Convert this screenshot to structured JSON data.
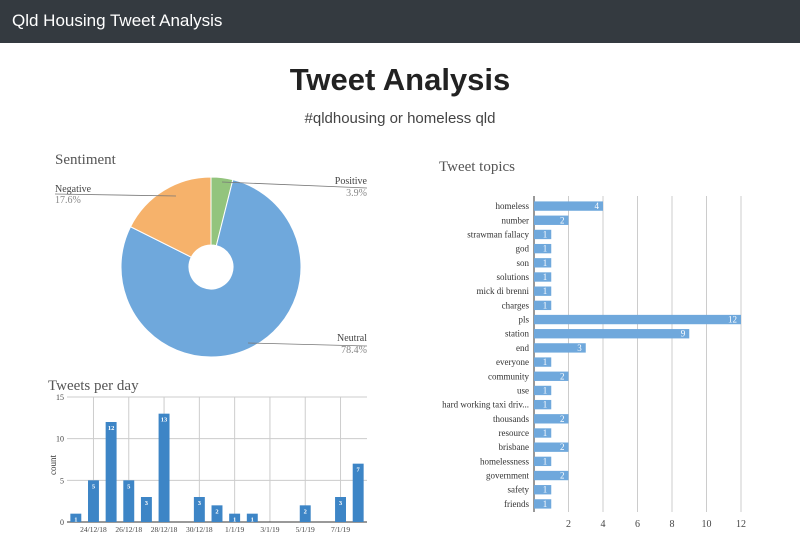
{
  "app": {
    "brand": "Qld Housing Tweet Analysis",
    "title": "Tweet Analysis",
    "subtitle": "#qldhousing or homeless qld"
  },
  "colors": {
    "navbar": "#343a40",
    "neutral": "#6fa8dc",
    "negative": "#f6b26b",
    "positive": "#93c47d",
    "bar_day": "#3d85c6",
    "bar_topic": "#6fa8dc"
  },
  "chart_data": [
    {
      "type": "pie",
      "title": "Sentiment",
      "donut": true,
      "slices": [
        {
          "label": "Positive",
          "value": 3.9,
          "display": "3.9%"
        },
        {
          "label": "Neutral",
          "value": 78.4,
          "display": "78.4%"
        },
        {
          "label": "Negative",
          "value": 17.6,
          "display": "17.6%"
        }
      ]
    },
    {
      "type": "bar",
      "title": "Tweets per day",
      "ylabel": "count",
      "xlabel": "",
      "ylim": [
        0,
        15
      ],
      "yticks": [
        0,
        5,
        10,
        15
      ],
      "xtick_labels": [
        "24/12/18",
        "26/12/18",
        "28/12/18",
        "30/12/18",
        "1/1/19",
        "3/1/19",
        "5/1/19",
        "7/1/19"
      ],
      "values": [
        1,
        5,
        12,
        5,
        3,
        13,
        0,
        3,
        2,
        1,
        1,
        0,
        0,
        2,
        0,
        3,
        7
      ],
      "grid": true
    },
    {
      "type": "bar",
      "orientation": "horizontal",
      "title": "Tweet topics",
      "xlim": [
        0,
        12
      ],
      "xticks": [
        2,
        4,
        6,
        8,
        10,
        12
      ],
      "categories": [
        "homeless",
        "number",
        "strawman fallacy",
        "god",
        "son",
        "solutions",
        "mick di brenni",
        "charges",
        "pls",
        "station",
        "end",
        "everyone",
        "community",
        "use",
        "hard working taxi driv...",
        "thousands",
        "resource",
        "brisbane",
        "homelessness",
        "government",
        "safety",
        "friends"
      ],
      "values": [
        4,
        2,
        1,
        1,
        1,
        1,
        1,
        1,
        12,
        9,
        3,
        1,
        2,
        1,
        1,
        2,
        1,
        2,
        1,
        2,
        1,
        1
      ],
      "grid": true
    }
  ]
}
